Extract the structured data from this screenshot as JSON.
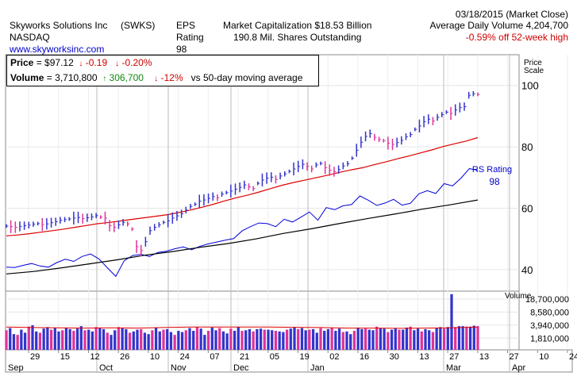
{
  "header": {
    "company": "Skyworks Solutions Inc",
    "symbol": "(SWKS)",
    "exchange": "NASDAQ",
    "website": "www.skyworksinc.com",
    "eps_label": "EPS",
    "rating_label": "Rating",
    "rating_value": "98",
    "market_cap": "Market Capitalization $18.53 Billion",
    "shares": "190.8 Mil. Shares Outstanding",
    "date": "03/18/2015 (Market Close)",
    "avg_volume": "Average Daily Volume 4,204,700",
    "off_high": "-0.59% off 52-week high"
  },
  "info": {
    "price_label": "Price",
    "price_value": "= $97.12",
    "price_change": "-0.19",
    "price_change_pct": "-0.20%",
    "volume_label": "Volume",
    "volume_value": "= 3,710,800",
    "volume_change": "306,700",
    "volume_change_pct": "-12%",
    "volume_note": "vs 50-day moving average"
  },
  "chart_data": {
    "type": "line",
    "price_axis_title": [
      "Price",
      "Scale"
    ],
    "price_ticks": [
      "100",
      "80",
      "60",
      "40"
    ],
    "price_tick_values": [
      100,
      80,
      60,
      40
    ],
    "price_ylim": [
      33,
      110
    ],
    "volume_axis_title": "Volume",
    "volume_ticks": [
      "18,700,000",
      "8,580,000",
      "3,940,000",
      "1,810,000"
    ],
    "volume_tick_values": [
      18700000,
      8580000,
      3940000,
      1810000
    ],
    "volume_scale": "log",
    "volume_ylim": [
      900000,
      26000000
    ],
    "x_day_labels": [
      "29",
      "15",
      "12",
      "26",
      "10",
      "24",
      "07",
      "21",
      "05",
      "19",
      "02",
      "16",
      "30",
      "13",
      "27",
      "13",
      "27",
      "10",
      "24"
    ],
    "x_month_labels": [
      "Sep",
      "Oct",
      "Nov",
      "Dec",
      "Jan",
      "Mar",
      "Apr"
    ],
    "rs_label": "RS Rating",
    "rs_value": "98",
    "series": [
      {
        "name": "price",
        "color": "#3333cc",
        "values": [
          54.2,
          54.0,
          53.8,
          54.1,
          54.3,
          54.5,
          54.8,
          55.0,
          54.7,
          54.9,
          55.3,
          55.6,
          56.1,
          56.3,
          56.5,
          56.8,
          57.0,
          56.6,
          56.9,
          57.2,
          57.6,
          57.1,
          56.8,
          54.3,
          53.8,
          54.6,
          55.4,
          54.9,
          53.2,
          47.5,
          46.2,
          49.1,
          52.7,
          53.8,
          54.6,
          55.4,
          55.9,
          56.8,
          57.5,
          58.2,
          59.4,
          60.6,
          61.3,
          62.3,
          62.7,
          63.2,
          63.8,
          63.4,
          64.6,
          65.1,
          65.6,
          66.2,
          66.8,
          67.6,
          67.0,
          66.4,
          68.1,
          69.2,
          69.8,
          70.1,
          69.4,
          70.5,
          71.2,
          72.0,
          72.8,
          73.6,
          74.3,
          73.6,
          72.8,
          74.1,
          74.6,
          73.2,
          72.4,
          71.9,
          72.6,
          73.8,
          74.5,
          76.3,
          78.9,
          81.5,
          83.4,
          84.3,
          83.1,
          82.4,
          82.0,
          81.2,
          80.8,
          81.4,
          82.1,
          83.3,
          84.0,
          85.7,
          86.8,
          88.2,
          89.0,
          88.4,
          89.6,
          90.5,
          91.3,
          90.9,
          92.0,
          92.8,
          93.1,
          96.8,
          97.3,
          97.1
        ]
      },
      {
        "name": "50-day moving average",
        "color": "#dd0000",
        "values": [
          51.0,
          51.3,
          51.7,
          52.2,
          52.7,
          53.2,
          53.8,
          54.4,
          55.0,
          55.4,
          55.9,
          56.4,
          56.9,
          57.4,
          57.9,
          58.6,
          59.4,
          60.3,
          61.3,
          62.4,
          63.4,
          64.3,
          65.3,
          66.4,
          67.5,
          68.4,
          69.2,
          70.0,
          70.8,
          71.7,
          72.5,
          73.2,
          74.2,
          75.1,
          76.1,
          77.0,
          78.0,
          79.0,
          80.1,
          81.0,
          81.9,
          83.0
        ]
      },
      {
        "name": "relative strength",
        "color": "#0000dd",
        "values": [
          40.8,
          40.7,
          41.4,
          42.0,
          41.2,
          40.8,
          42.3,
          43.4,
          42.7,
          44.3,
          45.1,
          43.5,
          40.6,
          37.8,
          42.9,
          44.6,
          45.0,
          44.3,
          45.6,
          46.0,
          46.8,
          47.4,
          46.5,
          47.6,
          48.4,
          49.0,
          49.6,
          50.1,
          52.6,
          54.0,
          55.2,
          55.0,
          54.0,
          56.4,
          55.5,
          57.1,
          58.8,
          56.1,
          60.2,
          59.5,
          60.8,
          61.2,
          64.0,
          62.6,
          60.9,
          61.7,
          62.9,
          61.0,
          61.6,
          64.7,
          65.7,
          64.8,
          68.0,
          67.3,
          69.8,
          72.9,
          72.4
        ]
      },
      {
        "name": "RS line trend",
        "color": "#000000",
        "values": [
          38.6,
          39.4,
          40.6,
          41.9,
          43.2,
          44.7,
          45.9,
          47.3,
          48.5,
          50.0,
          51.8,
          53.3,
          55.0,
          56.6,
          58.1,
          59.7,
          61.1,
          62.7
        ]
      }
    ],
    "volume": {
      "bar_color_up": "#3333cc",
      "bar_color_down": "#dd3399",
      "average_color": "#dd0000",
      "values": [
        2900000,
        3300000,
        2300000,
        2200000,
        3000000,
        2500000,
        3600000,
        3900000,
        2700000,
        2500000,
        3200000,
        3500000,
        3000000,
        3300000,
        2700000,
        2900000,
        3400000,
        3100000,
        2800000,
        3200000,
        3700000,
        2900000,
        3000000,
        2700000,
        3500000,
        3400000,
        3100000,
        2500000,
        2200000,
        2900000,
        3500000,
        3300000,
        3100000,
        2500000,
        2700000,
        3000000,
        3100000,
        2500000,
        2300000,
        2900000,
        3400000,
        2700000,
        3000000,
        3100000,
        2600000,
        2200000,
        2800000,
        2600000,
        2900000,
        3300000,
        2800000,
        3500000,
        3200000,
        2200000,
        2800000,
        3400000,
        2900000,
        3300000,
        2700000,
        2400000,
        3200000,
        2800000,
        3500000,
        2800000,
        2900000,
        3100000,
        2700000,
        3100000,
        3200000,
        3000000,
        3000000,
        2900000,
        2800000,
        2700000,
        2600000,
        3000000,
        3200000,
        3500000,
        3100000,
        3300000,
        2900000,
        3000000,
        3100000,
        2500000,
        3300000,
        2800000,
        3100000,
        3400000,
        2800000,
        3200000,
        2600000,
        2700000,
        2300000,
        2800000,
        3400000,
        3100000,
        3200000,
        3000000,
        2900000,
        3600000,
        3300000,
        3200000,
        2600000,
        3000000,
        3300000,
        3000000,
        3000000,
        3400000,
        3600000,
        2900000,
        3200000,
        2700000,
        3100000,
        2900000,
        2600000,
        3300000,
        3500000,
        3200000,
        3500000,
        25000000,
        3500000,
        3700000,
        3700000,
        3600000,
        3600000,
        3800000,
        3700000
      ],
      "average": [
        3500000,
        3400000,
        3350000,
        3300000,
        3350000,
        3300000,
        3400000,
        3500000,
        3500000,
        3500000,
        3500000,
        3450000,
        3400000,
        3300000,
        3300000,
        3250000,
        3300000,
        3350000,
        3500000
      ]
    }
  }
}
